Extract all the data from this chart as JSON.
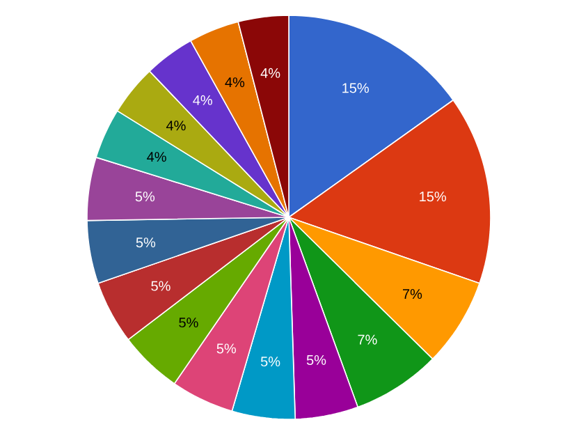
{
  "chart_data": {
    "type": "pie",
    "categories": [
      null,
      null,
      null,
      null,
      null,
      null,
      null,
      null,
      null,
      null,
      null,
      null,
      null,
      null,
      null,
      null
    ],
    "values": [
      15,
      15,
      7,
      7,
      5,
      5,
      5,
      5,
      5,
      5,
      5,
      4,
      4,
      4,
      4,
      4
    ],
    "colors": [
      "#3366cc",
      "#dc3912",
      "#ff9900",
      "#109618",
      "#990099",
      "#0099c6",
      "#dd4477",
      "#66aa00",
      "#b82e2e",
      "#316395",
      "#994499",
      "#22aa99",
      "#aaaa11",
      "#6633cc",
      "#e67300",
      "#8b0707"
    ],
    "value_labels": [
      "15%",
      "15%",
      "7%",
      "7%",
      "5%",
      "5%",
      "5%",
      "5%",
      "5%",
      "5%",
      "5%",
      "4%",
      "4%",
      "4%",
      "4%",
      "4%"
    ]
  }
}
